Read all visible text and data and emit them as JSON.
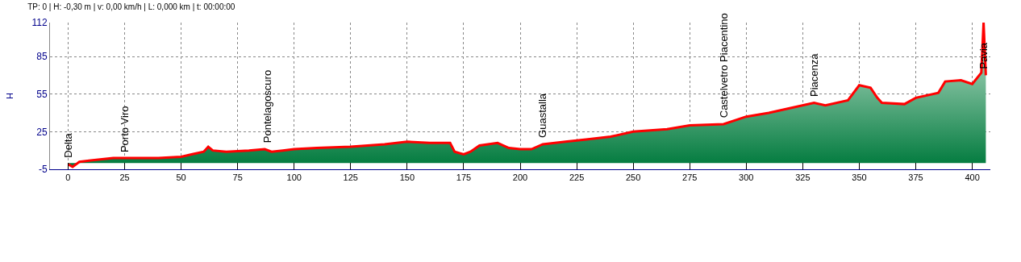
{
  "chart_data": {
    "type": "area",
    "title": "TP: 0 | H: -0,30 m | v: 0,00 km/h | L: 0,000 km | t: 00:00:00",
    "ylabel": "H",
    "x": [
      0,
      2,
      5,
      10,
      20,
      30,
      40,
      50,
      55,
      60,
      62,
      64,
      70,
      80,
      87,
      90,
      95,
      100,
      110,
      125,
      140,
      150,
      160,
      169,
      171,
      175,
      178,
      182,
      190,
      195,
      200,
      205,
      210,
      220,
      230,
      240,
      250,
      265,
      275,
      290,
      300,
      310,
      320,
      330,
      335,
      345,
      350,
      355,
      358,
      360,
      370,
      375,
      385,
      388,
      395,
      400,
      404,
      405,
      406
    ],
    "series": [
      {
        "color": "#ff0000",
        "values": [
          -1,
          -3,
          1,
          2,
          4,
          4,
          4,
          5,
          7,
          9,
          13,
          10,
          9,
          10,
          11,
          9,
          10,
          11,
          12,
          13,
          15,
          17,
          16,
          16,
          9,
          7,
          9,
          14,
          16,
          12,
          11,
          11,
          15,
          17,
          19,
          21,
          25,
          27,
          30,
          31,
          37,
          40,
          44,
          48,
          46,
          50,
          62,
          60,
          52,
          48,
          47,
          52,
          56,
          65,
          66,
          63,
          72,
          112,
          70
        ]
      }
    ],
    "xlim": [
      -8,
      408
    ],
    "ylim": [
      -5,
      112
    ],
    "xticks": [
      0,
      25,
      50,
      75,
      100,
      125,
      150,
      175,
      200,
      225,
      250,
      275,
      300,
      325,
      350,
      375,
      400
    ],
    "yticks": [
      -5,
      25,
      55,
      85,
      112
    ],
    "grid": true,
    "marker": "none",
    "line_style": "solid",
    "annotations": [
      {
        "text": "Delta",
        "x": 0,
        "y": -1
      },
      {
        "text": "Porto Viro",
        "x": 25,
        "y": 3
      },
      {
        "text": "Pontelagoscuro",
        "x": 88,
        "y": 11
      },
      {
        "text": "Guastalla",
        "x": 210,
        "y": 15
      },
      {
        "text": "Castelvetro Piacentino",
        "x": 290,
        "y": 31
      },
      {
        "text": "Piacenza",
        "x": 330,
        "y": 48
      },
      {
        "text": "Pavia",
        "x": 405,
        "y": 70
      }
    ]
  }
}
